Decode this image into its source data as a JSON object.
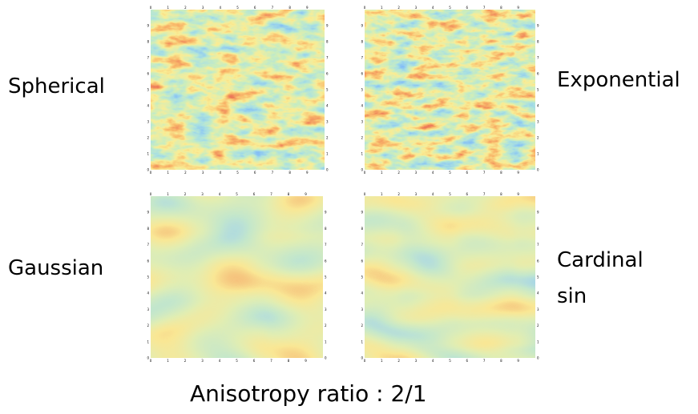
{
  "labels": {
    "spherical": "Spherical",
    "exponential": "Exponential",
    "gaussian": "Gaussian",
    "cardinal_sin": [
      "Cardinal",
      "sin"
    ]
  },
  "axis_ticks": [
    0,
    1,
    2,
    3,
    4,
    5,
    6,
    7,
    8,
    9
  ],
  "caption": "Anisotropy ratio : 2/1"
}
